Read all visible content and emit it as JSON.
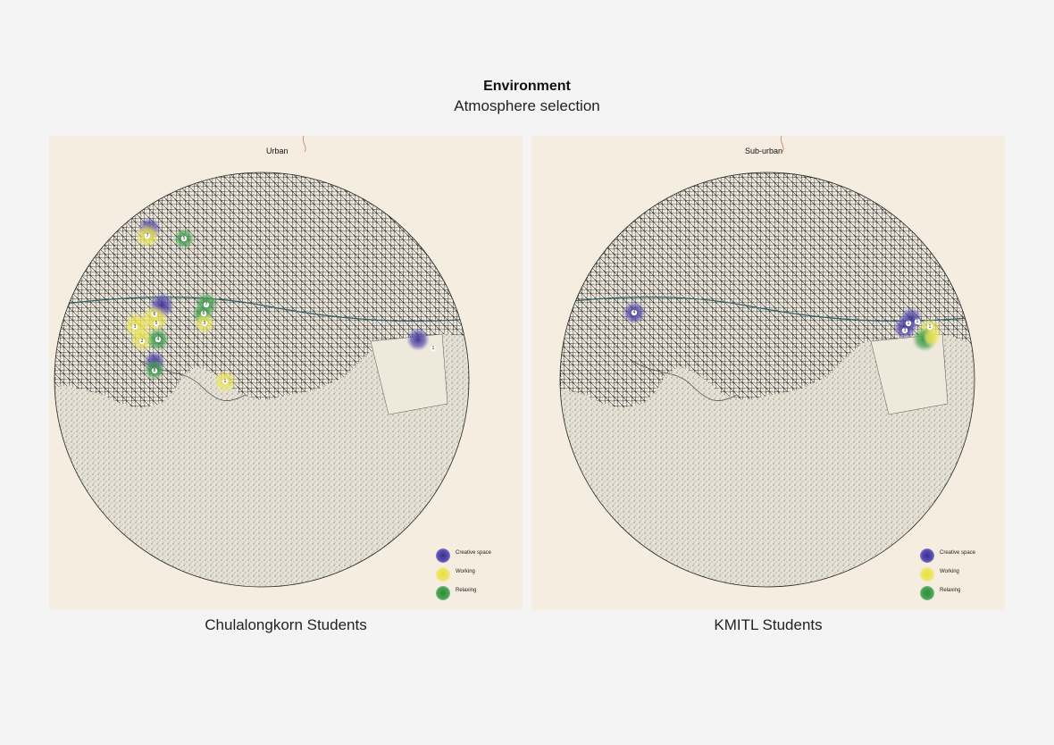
{
  "header": {
    "title": "Environment",
    "subtitle": "Atmosphere selection"
  },
  "colors": {
    "background": "#f4f4f4",
    "panel": "#f5ede0",
    "creative": "#3a2f8f",
    "working": "#e6df3a",
    "relaxing": "#2e8c3a"
  },
  "maps": [
    {
      "area_label": "Urban",
      "caption": "Chulalongkorn Students",
      "legend": [
        {
          "label": "Creative space",
          "color": "#3a2f8f"
        },
        {
          "label": "Working",
          "color": "#e6df3a"
        },
        {
          "label": "Relaxing",
          "color": "#2e8c3a"
        }
      ]
    },
    {
      "area_label": "Sub-urban",
      "caption": "KMITL Students",
      "legend": [
        {
          "label": "Creative space",
          "color": "#3a2f8f"
        },
        {
          "label": "Working",
          "color": "#e6df3a"
        },
        {
          "label": "Relaxing",
          "color": "#2e8c3a"
        }
      ]
    }
  ]
}
